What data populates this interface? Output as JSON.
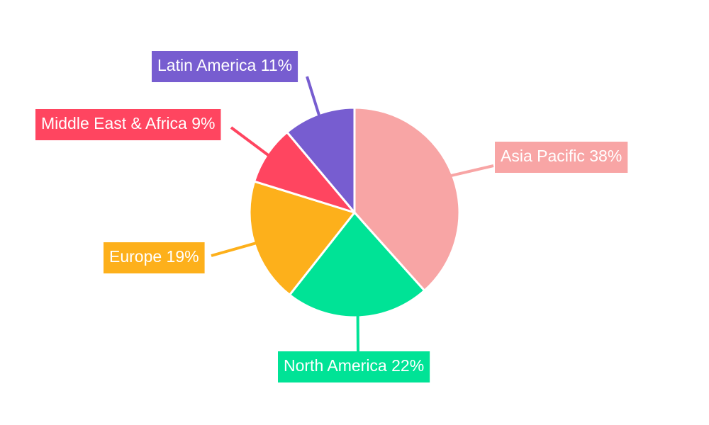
{
  "chart_data": {
    "type": "pie",
    "title": "",
    "start_angle_deg": 0,
    "direction": "clockwise",
    "slices": [
      {
        "name": "Asia Pacific",
        "value": 38,
        "label": "Asia Pacific 38%",
        "color": "#F8A5A5",
        "label_side": "right"
      },
      {
        "name": "North America",
        "value": 22,
        "label": "North America 22%",
        "color": "#00E396",
        "label_side": "bottom"
      },
      {
        "name": "Europe",
        "value": 19,
        "label": "Europe 19%",
        "color": "#FDB01B",
        "label_side": "left"
      },
      {
        "name": "Middle East & Africa",
        "value": 9,
        "label": "Middle East & Africa 9%",
        "color": "#FF4560",
        "label_side": "left"
      },
      {
        "name": "Latin America",
        "value": 11,
        "label": "Latin America 11%",
        "color": "#775DD0",
        "label_side": "top-left"
      }
    ]
  }
}
